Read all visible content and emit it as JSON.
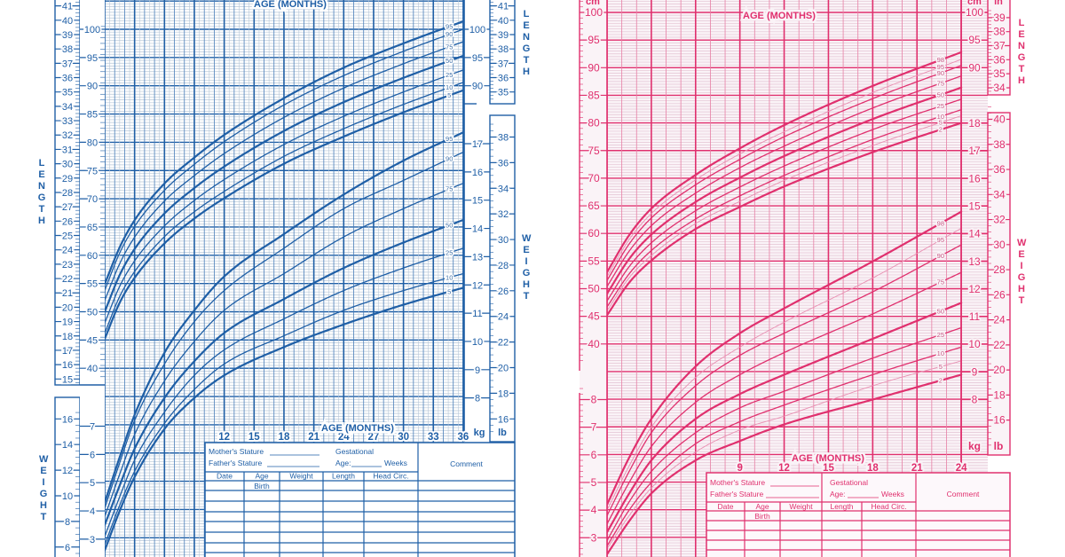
{
  "chart_data": [
    {
      "type": "line",
      "color": "#1f5fa6",
      "xlabel": "AGE (MONTHS)",
      "xlim": [
        0,
        36
      ],
      "x_ticks": [
        12,
        15,
        18,
        21,
        24,
        27,
        30,
        33,
        36
      ],
      "grid": true,
      "length": {
        "ylabel": "LENGTH",
        "ticks_cm_left": [
          100,
          95,
          90,
          85,
          80,
          75,
          70,
          65,
          60,
          55,
          50,
          45,
          40
        ],
        "ticks_cm_right": [
          100,
          95,
          90
        ],
        "ticks_in_left": [
          41,
          40,
          39,
          38,
          37,
          36,
          35,
          34,
          33,
          32,
          31,
          30,
          29,
          28,
          27,
          26,
          25,
          24,
          23,
          22,
          21,
          20,
          19,
          18,
          17,
          16,
          15
        ],
        "ticks_in_right": [
          41,
          40,
          39,
          38,
          37,
          36,
          35
        ],
        "ages": [
          0,
          1.5,
          3,
          6,
          9,
          12,
          18,
          24,
          30,
          36
        ],
        "series": [
          {
            "name": "95",
            "values": [
              54.9,
              61.4,
              66.2,
              72.7,
              77.3,
              81.3,
              87.8,
              93.2,
              97.5,
              101.4
            ]
          },
          {
            "name": "90",
            "values": [
              53.8,
              60.4,
              65.1,
              71.5,
              76.1,
              80.1,
              86.6,
              91.8,
              96.1,
              100.0
            ]
          },
          {
            "name": "75",
            "values": [
              52.0,
              58.5,
              63.2,
              69.6,
              74.1,
              78.0,
              84.4,
              89.6,
              93.9,
              97.8
            ]
          },
          {
            "name": "50",
            "values": [
              50.0,
              56.5,
              61.1,
              67.4,
              71.9,
              75.7,
              82.0,
              87.1,
              91.4,
              95.3
            ]
          },
          {
            "name": "25",
            "values": [
              48.0,
              54.5,
              59.0,
              65.2,
              69.7,
              73.4,
              79.6,
              84.6,
              88.9,
              92.8
            ]
          },
          {
            "name": "10",
            "values": [
              46.2,
              52.7,
              57.1,
              63.3,
              67.7,
              71.3,
              77.5,
              82.4,
              86.7,
              90.6
            ]
          },
          {
            "name": "5",
            "values": [
              45.2,
              51.6,
              56.0,
              62.1,
              66.5,
              70.1,
              76.2,
              81.0,
              85.3,
              89.2
            ]
          }
        ]
      },
      "weight": {
        "ylabel": "WEIGHT",
        "unit_kg": "kg",
        "unit_lb": "lb",
        "ticks_kg_left": [
          7,
          6,
          5,
          4,
          3
        ],
        "ticks_kg_right": [
          17,
          16,
          15,
          14,
          13,
          12,
          11,
          10,
          9,
          8
        ],
        "ticks_lb_left": [
          16,
          14,
          12,
          10,
          8,
          6
        ],
        "ticks_lb_right": [
          38,
          36,
          34,
          32,
          30,
          28,
          26,
          24,
          22,
          20,
          18,
          16
        ],
        "ages": [
          0,
          1.5,
          3,
          6,
          9,
          12,
          18,
          24,
          30,
          36
        ],
        "series": [
          {
            "name": "95",
            "values": [
              4.3,
              5.9,
              7.4,
              9.6,
              11.1,
              12.3,
              13.8,
              15.2,
              16.4,
              17.4
            ]
          },
          {
            "name": "90",
            "values": [
              4.1,
              5.7,
              7.2,
              9.2,
              10.7,
              11.8,
              13.3,
              14.7,
              15.7,
              16.7
            ]
          },
          {
            "name": "75",
            "values": [
              3.8,
              5.3,
              6.7,
              8.6,
              10.0,
              11.1,
              12.4,
              13.7,
              14.7,
              15.6
            ]
          },
          {
            "name": "50",
            "values": [
              3.5,
              4.9,
              6.2,
              8.0,
              9.3,
              10.3,
              11.5,
              12.6,
              13.5,
              14.3
            ]
          },
          {
            "name": "25",
            "values": [
              3.1,
              4.5,
              5.8,
              7.5,
              8.8,
              9.7,
              10.8,
              11.8,
              12.6,
              13.3
            ]
          },
          {
            "name": "10",
            "values": [
              2.8,
              4.2,
              5.4,
              7.1,
              8.3,
              9.2,
              10.2,
              11.1,
              11.8,
              12.4
            ]
          },
          {
            "name": "5",
            "values": [
              2.6,
              4.0,
              5.2,
              6.9,
              8.0,
              8.8,
              9.8,
              10.6,
              11.3,
              11.9
            ]
          }
        ]
      },
      "record_table": {
        "mother_stature": "Mother's Stature",
        "father_stature": "Father's Stature",
        "gestational": "Gestational",
        "age": "Age:",
        "weeks": "Weeks",
        "comment": "Comment",
        "columns": [
          "Date",
          "Age",
          "Weight",
          "Length",
          "Head  Circ."
        ],
        "first_row_age": "Birth"
      }
    },
    {
      "type": "line",
      "color": "#e0306e",
      "xlabel": "AGE (MONTHS)",
      "xlim": [
        0,
        24
      ],
      "x_ticks": [
        9,
        12,
        15,
        18,
        21,
        24
      ],
      "grid": true,
      "length": {
        "ylabel": "LENGTH",
        "unit_cm": "cm",
        "unit_in": "in",
        "ticks_cm_left": [
          100,
          95,
          90,
          85,
          80,
          75,
          70,
          65,
          60,
          55,
          50,
          45,
          40
        ],
        "ticks_cm_right": [
          100,
          95,
          90
        ],
        "ticks_in_right": [
          39,
          38,
          37,
          36,
          35,
          34
        ],
        "ages": [
          0,
          1.5,
          3,
          6,
          9,
          12,
          18,
          24
        ],
        "series": [
          {
            "name": "98",
            "values": [
              53.0,
              59.7,
              64.5,
              70.6,
              75.4,
              79.6,
              86.7,
              92.8
            ]
          },
          {
            "name": "95",
            "values": [
              52.2,
              58.9,
              63.6,
              69.7,
              74.4,
              78.4,
              85.5,
              91.5
            ]
          },
          {
            "name": "90",
            "values": [
              51.5,
              58.1,
              62.8,
              68.8,
              73.4,
              77.5,
              84.4,
              90.4
            ]
          },
          {
            "name": "75",
            "values": [
              50.4,
              56.8,
              61.4,
              67.3,
              71.9,
              75.8,
              82.7,
              88.5
            ]
          },
          {
            "name": "50",
            "values": [
              49.1,
              55.4,
              59.8,
              65.7,
              70.1,
              74.0,
              80.7,
              86.4
            ]
          },
          {
            "name": "25",
            "values": [
              47.8,
              54.0,
              58.3,
              64.1,
              68.4,
              72.2,
              78.8,
              84.3
            ]
          },
          {
            "name": "10",
            "values": [
              46.7,
              52.7,
              56.9,
              62.6,
              66.8,
              70.5,
              77.0,
              82.4
            ]
          },
          {
            "name": "5",
            "values": [
              46.0,
              52.0,
              56.0,
              61.8,
              65.8,
              69.6,
              75.9,
              81.3
            ]
          },
          {
            "name": "2",
            "values": [
              45.2,
              51.1,
              55.1,
              60.8,
              64.8,
              68.5,
              74.7,
              80.0
            ]
          }
        ]
      },
      "weight": {
        "ylabel": "WEIGHT",
        "unit_kg": "kg",
        "unit_lb": "lb",
        "ticks_kg_left": [
          8,
          7,
          6,
          5,
          4,
          3
        ],
        "ticks_kg_right": [
          18,
          17,
          16,
          15,
          14,
          13,
          12,
          11,
          10,
          9,
          8
        ],
        "ticks_lb_right": [
          40,
          38,
          36,
          34,
          32,
          30,
          28,
          26,
          24,
          22,
          20,
          18,
          16
        ],
        "ages": [
          0,
          1.5,
          3,
          6,
          9,
          12,
          18,
          24
        ],
        "series": [
          {
            "name": "98",
            "values": [
              4.2,
              5.9,
              7.3,
              9.2,
              10.4,
              11.3,
              13.0,
              14.8
            ]
          },
          {
            "name": "95",
            "values": [
              4.0,
              5.6,
              7.0,
              8.8,
              9.9,
              10.8,
              12.4,
              14.2
            ]
          },
          {
            "name": "90",
            "values": [
              3.8,
              5.4,
              6.8,
              8.5,
              9.6,
              10.4,
              11.9,
              13.6
            ]
          },
          {
            "name": "75",
            "values": [
              3.5,
              5.0,
              6.3,
              7.9,
              8.9,
              9.7,
              11.1,
              12.6
            ]
          },
          {
            "name": "50",
            "values": [
              3.2,
              4.6,
              5.8,
              7.3,
              8.2,
              8.9,
              10.2,
              11.5
            ]
          },
          {
            "name": "25",
            "values": [
              2.9,
              4.3,
              5.4,
              6.8,
              7.7,
              8.3,
              9.5,
              10.6
            ]
          },
          {
            "name": "10",
            "values": [
              2.7,
              4.0,
              5.0,
              6.4,
              7.2,
              7.8,
              8.9,
              9.9
            ]
          },
          {
            "name": "5",
            "values": [
              2.6,
              3.8,
              4.8,
              6.1,
              6.9,
              7.4,
              8.5,
              9.4
            ]
          },
          {
            "name": "2",
            "values": [
              2.4,
              3.6,
              4.6,
              5.8,
              6.5,
              7.1,
              8.0,
              8.9
            ]
          }
        ]
      },
      "record_table": {
        "mother_stature": "Mother's Stature",
        "father_stature": "Father's Stature",
        "gestational": "Gestational",
        "age": "Age:",
        "weeks": "Weeks",
        "comment": "Comment",
        "columns": [
          "Date",
          "Age",
          "Weight",
          "Length",
          "Head  Circ."
        ],
        "first_row_age": "Birth"
      }
    }
  ]
}
